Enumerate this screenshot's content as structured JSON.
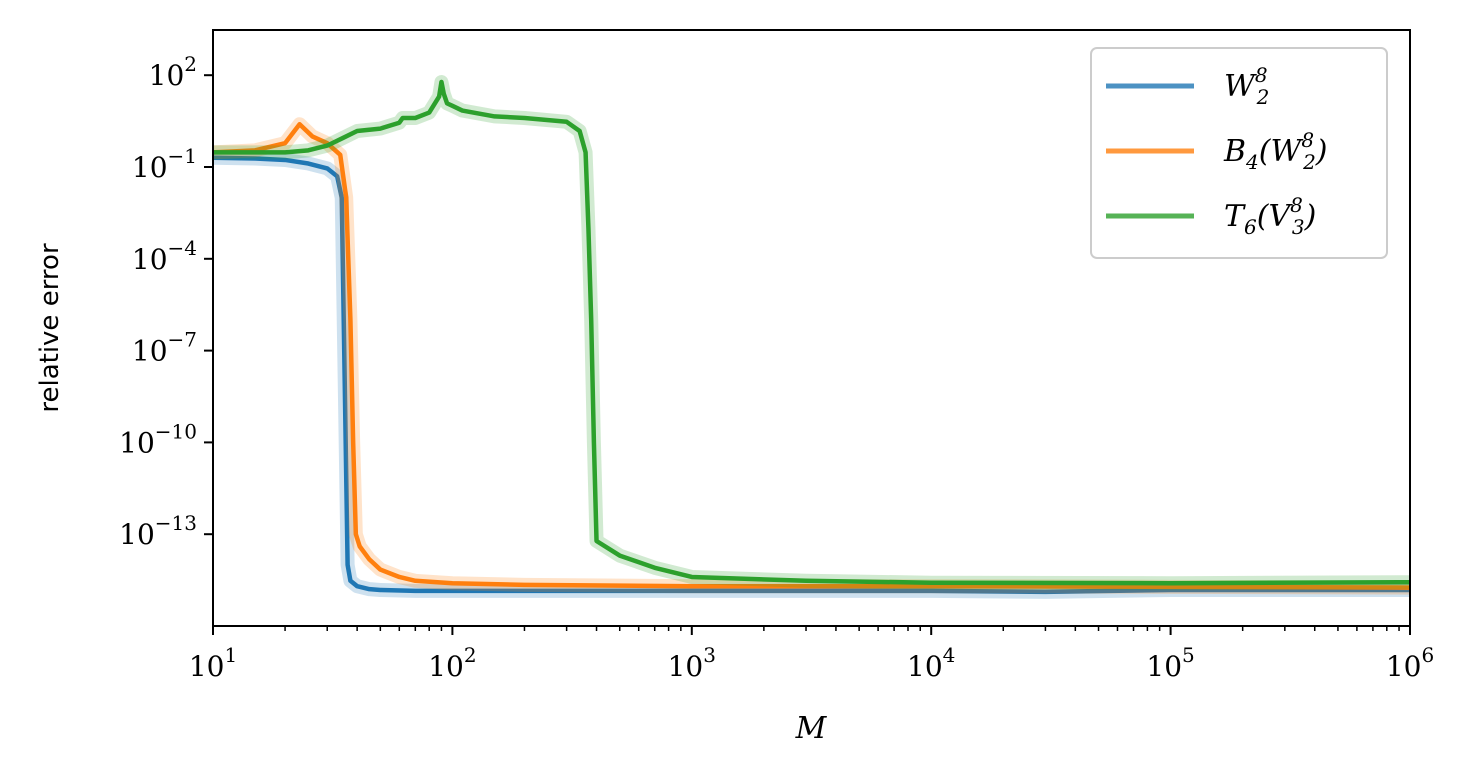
{
  "chart_data": {
    "type": "line",
    "xscale": "log",
    "yscale": "log",
    "xlim": [
      10,
      1000000
    ],
    "ylim": [
      1e-16,
      3000
    ],
    "xlabel": "M",
    "ylabel": "relative error",
    "legend_position": "top-right",
    "grid": false,
    "xticks": [
      {
        "base": "10",
        "exp": "1",
        "value": 10
      },
      {
        "base": "10",
        "exp": "2",
        "value": 100
      },
      {
        "base": "10",
        "exp": "3",
        "value": 1000
      },
      {
        "base": "10",
        "exp": "4",
        "value": 10000
      },
      {
        "base": "10",
        "exp": "5",
        "value": 100000
      },
      {
        "base": "10",
        "exp": "6",
        "value": 1000000
      }
    ],
    "yticks": [
      {
        "base": "10",
        "exp": "2",
        "value": 100.0
      },
      {
        "base": "10",
        "exp": "−1",
        "value": 0.1
      },
      {
        "base": "10",
        "exp": "−4",
        "value": 0.0001
      },
      {
        "base": "10",
        "exp": "−7",
        "value": 1e-07
      },
      {
        "base": "10",
        "exp": "−10",
        "value": 1e-10
      },
      {
        "base": "10",
        "exp": "−13",
        "value": 1e-13
      }
    ],
    "series": [
      {
        "label_main": "W",
        "label_sub": "2",
        "label_sup": "8",
        "label_tail": "",
        "color": "#1f77b4",
        "x": [
          10,
          15,
          20,
          25,
          30,
          33,
          34.5,
          35.5,
          36.5,
          37.5,
          40,
          45,
          50,
          70,
          100,
          1000,
          10000,
          30000,
          100000,
          1000000
        ],
        "y": [
          0.2,
          0.19,
          0.17,
          0.13,
          0.09,
          0.05,
          0.01,
          1e-08,
          1e-14,
          3e-15,
          2e-15,
          1.6e-15,
          1.5e-15,
          1.4e-15,
          1.4e-15,
          1.4e-15,
          1.4e-15,
          1.3e-15,
          1.5e-15,
          1.5e-15
        ]
      },
      {
        "label_main": "B",
        "label_sub": "4",
        "label_sup": "8",
        "label_tail": "(W)",
        "color": "#ff7f0e",
        "x": [
          10,
          15,
          20,
          23,
          26,
          30,
          34,
          36,
          37.5,
          38.5,
          39.5,
          41,
          45,
          50,
          60,
          70,
          100,
          200,
          1000,
          10000,
          100000,
          1000000
        ],
        "y": [
          0.3,
          0.35,
          0.6,
          2.5,
          1.0,
          0.6,
          0.25,
          0.01,
          1e-06,
          1e-10,
          1e-13,
          4e-14,
          1.5e-14,
          7e-15,
          4e-15,
          3e-15,
          2.5e-15,
          2.2e-15,
          2e-15,
          2e-15,
          1.9e-15,
          1.8e-15
        ]
      },
      {
        "label_main": "T",
        "label_sub": "6",
        "label_sup": "8",
        "label_tail": "(V)",
        "color": "#2ca02c",
        "x": [
          10,
          20,
          25,
          30,
          35,
          40,
          50,
          60,
          62,
          70,
          80,
          88,
          90,
          92,
          95,
          100,
          110,
          150,
          200,
          300,
          340,
          360,
          370,
          380,
          390,
          400,
          500,
          700,
          1000,
          3000,
          10000,
          100000,
          1000000
        ],
        "y": [
          0.3,
          0.3,
          0.35,
          0.5,
          0.9,
          1.5,
          1.8,
          2.8,
          4.0,
          4.0,
          6.0,
          20,
          60,
          25,
          12,
          10,
          7,
          4.5,
          4.0,
          3.0,
          1.5,
          0.3,
          0.001,
          1e-06,
          1e-10,
          6e-14,
          2e-14,
          8e-15,
          4e-15,
          3e-15,
          2.6e-15,
          2.5e-15,
          2.7e-15
        ]
      }
    ]
  }
}
